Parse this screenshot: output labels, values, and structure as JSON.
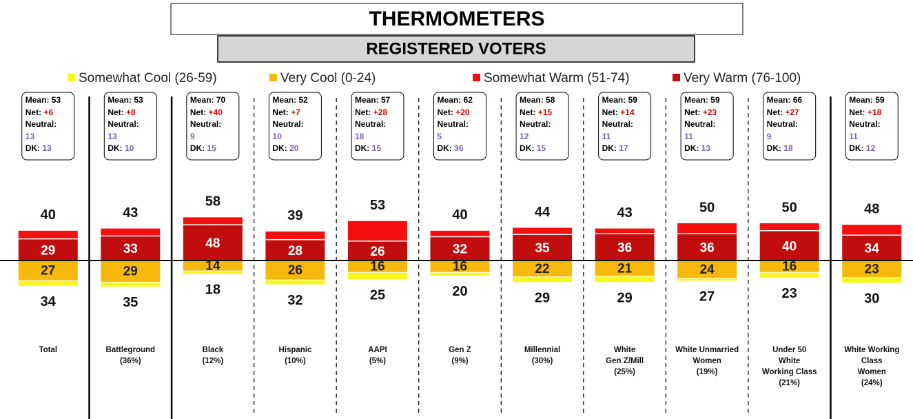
{
  "chart_data": {
    "type": "diverging_stacked_bar",
    "title": "THERMOMETERS",
    "subtitle": "REGISTERED VOTERS",
    "categories": [
      [
        "Total"
      ],
      [
        "Battleground",
        "(36%)"
      ],
      [
        "Black",
        "(12%)"
      ],
      [
        "Hispanic",
        "(10%)"
      ],
      [
        "AAPI",
        "(5%)"
      ],
      [
        "Gen Z",
        "(9%)"
      ],
      [
        "Millennial",
        "(30%)"
      ],
      [
        "White",
        "Gen Z/Mill",
        "(25%)"
      ],
      [
        "White Unmarried",
        "Women",
        "(19%)"
      ],
      [
        "Under 50",
        "White",
        "Working Class",
        "(21%)"
      ],
      [
        "White Working",
        "Class",
        "Women",
        "(24%)"
      ]
    ],
    "series": [
      {
        "name": "Somewhat Cool (26-59)",
        "color": "#f7f71e",
        "values": [
          7,
          6,
          4,
          6,
          9,
          4,
          7,
          8,
          3,
          7,
          7
        ]
      },
      {
        "name": "Very Cool (0-24)",
        "color": "#f6b80c",
        "values": [
          27,
          29,
          14,
          26,
          16,
          16,
          22,
          21,
          24,
          16,
          23
        ]
      },
      {
        "name": "Somewhat Warm (51-74)",
        "color": "#f50f0f",
        "values": [
          11,
          10,
          10,
          11,
          27,
          8,
          9,
          7,
          14,
          10,
          14
        ]
      },
      {
        "name": "Very Warm (76-100)",
        "color": "#c10d0d",
        "values": [
          29,
          33,
          48,
          28,
          26,
          32,
          35,
          36,
          36,
          40,
          34
        ]
      }
    ],
    "warm_totals": [
      40,
      43,
      58,
      39,
      53,
      40,
      44,
      43,
      50,
      50,
      48
    ],
    "cool_totals": [
      34,
      35,
      18,
      32,
      25,
      20,
      29,
      29,
      27,
      23,
      30
    ],
    "stat_labels": [
      "Mean:",
      "Net:",
      "Neutral:",
      "DK:"
    ],
    "stats": [
      {
        "mean": "53",
        "net": "+6",
        "neutral": "13",
        "dk": "13"
      },
      {
        "mean": "53",
        "net": "+8",
        "neutral": "13",
        "dk": "10"
      },
      {
        "mean": "70",
        "net": "+40",
        "neutral": "9",
        "dk": "15"
      },
      {
        "mean": "52",
        "net": "+7",
        "neutral": "10",
        "dk": "20"
      },
      {
        "mean": "57",
        "net": "+28",
        "neutral": "18",
        "dk": "15"
      },
      {
        "mean": "62",
        "net": "+20",
        "neutral": "5",
        "dk": "36"
      },
      {
        "mean": "58",
        "net": "+15",
        "neutral": "12",
        "dk": "15"
      },
      {
        "mean": "59",
        "net": "+14",
        "neutral": "11",
        "dk": "17"
      },
      {
        "mean": "59",
        "net": "+23",
        "neutral": "11",
        "dk": "13"
      },
      {
        "mean": "66",
        "net": "+27",
        "neutral": "9",
        "dk": "18"
      },
      {
        "mean": "59",
        "net": "+18",
        "neutral": "11",
        "dk": "12"
      }
    ]
  }
}
